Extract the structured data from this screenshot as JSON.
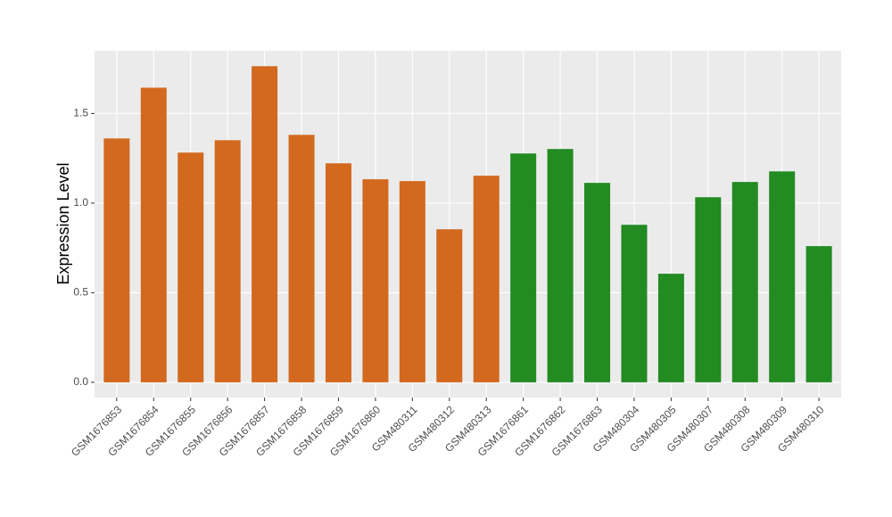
{
  "chart_data": {
    "type": "bar",
    "y_label": "Expression Level",
    "categories": [
      "GSM1676853",
      "GSM1676854",
      "GSM1676855",
      "GSM1676856",
      "GSM1676857",
      "GSM1676858",
      "GSM1676859",
      "GSM1676860",
      "GSM480311",
      "GSM480312",
      "GSM480313",
      "GSM1676861",
      "GSM1676862",
      "GSM1676863",
      "GSM480304",
      "GSM480305",
      "GSM480307",
      "GSM480308",
      "GSM480309",
      "GSM480310"
    ],
    "values": [
      1.361,
      1.644,
      1.282,
      1.351,
      1.764,
      1.381,
      1.222,
      1.133,
      1.123,
      0.854,
      1.153,
      1.277,
      1.302,
      1.113,
      0.879,
      0.606,
      1.033,
      1.118,
      1.177,
      0.76
    ],
    "colors": [
      "#d2691e",
      "#d2691e",
      "#d2691e",
      "#d2691e",
      "#d2691e",
      "#d2691e",
      "#d2691e",
      "#d2691e",
      "#d2691e",
      "#d2691e",
      "#d2691e",
      "#228b22",
      "#228b22",
      "#228b22",
      "#228b22",
      "#228b22",
      "#228b22",
      "#228b22",
      "#228b22",
      "#228b22"
    ],
    "ylim": [
      -0.085,
      1.85
    ],
    "yticks": [
      {
        "value": 0,
        "label": "0.0"
      },
      {
        "value": 0.5,
        "label": "0.5"
      },
      {
        "value": 1,
        "label": "1.0"
      },
      {
        "value": 1.5,
        "label": "1.5"
      }
    ],
    "grid": true
  }
}
